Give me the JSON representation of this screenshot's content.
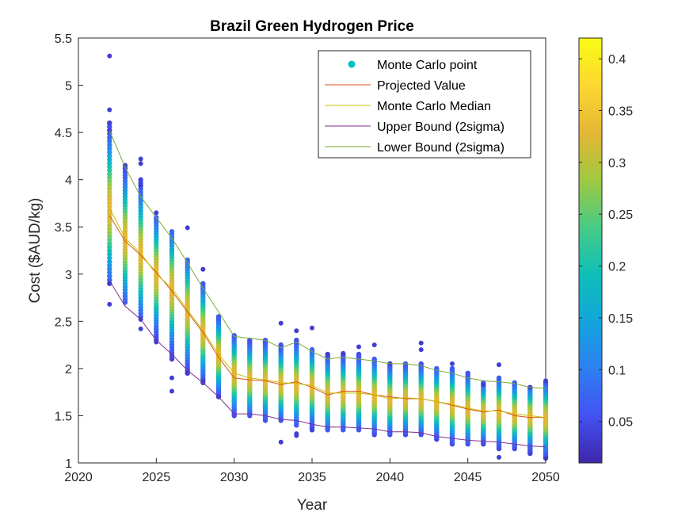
{
  "chart_data": {
    "type": "scatter",
    "title": "Brazil Green Hydrogen Price",
    "xlabel": "Year",
    "ylabel": "Cost ($AUD/kg)",
    "xlim": [
      2020,
      2050
    ],
    "ylim": [
      1,
      5.5
    ],
    "xticks": [
      "2020",
      "2025",
      "2030",
      "2035",
      "2040",
      "2045",
      "2050"
    ],
    "yticks": [
      "1",
      "1.5",
      "2",
      "2.5",
      "3",
      "3.5",
      "4",
      "4.5",
      "5",
      "5.5"
    ],
    "grid": false,
    "legend_position": "top-right",
    "years": [
      2022,
      2023,
      2024,
      2025,
      2026,
      2027,
      2028,
      2029,
      2030,
      2031,
      2032,
      2033,
      2034,
      2035,
      2036,
      2037,
      2038,
      2039,
      2040,
      2041,
      2042,
      2043,
      2044,
      2045,
      2046,
      2047,
      2048,
      2049,
      2050
    ],
    "series": [
      {
        "name": "Monte Carlo point",
        "kind": "points",
        "color": "#00bfc4",
        "ranges": [
          [
            2.9,
            4.6
          ],
          [
            2.7,
            4.15
          ],
          [
            2.55,
            4.0
          ],
          [
            2.3,
            3.6
          ],
          [
            2.1,
            3.45
          ],
          [
            1.95,
            3.15
          ],
          [
            1.85,
            2.9
          ],
          [
            1.7,
            2.55
          ],
          [
            1.5,
            2.35
          ],
          [
            1.5,
            2.3
          ],
          [
            1.45,
            2.3
          ],
          [
            1.45,
            2.25
          ],
          [
            1.4,
            2.3
          ],
          [
            1.35,
            2.2
          ],
          [
            1.35,
            2.15
          ],
          [
            1.35,
            2.15
          ],
          [
            1.35,
            2.15
          ],
          [
            1.3,
            2.1
          ],
          [
            1.3,
            2.05
          ],
          [
            1.3,
            2.05
          ],
          [
            1.3,
            2.05
          ],
          [
            1.25,
            2.0
          ],
          [
            1.2,
            2.0
          ],
          [
            1.2,
            1.95
          ],
          [
            1.2,
            1.85
          ],
          [
            1.15,
            1.9
          ],
          [
            1.15,
            1.85
          ],
          [
            1.1,
            1.8
          ],
          [
            1.05,
            1.85
          ]
        ],
        "outliers": [
          [
            2022,
            5.31
          ],
          [
            2022,
            4.74
          ],
          [
            2022,
            4.6
          ],
          [
            2022,
            4.52
          ],
          [
            2022,
            2.68
          ],
          [
            2022,
            2.9
          ],
          [
            2023,
            4.15
          ],
          [
            2024,
            4.22
          ],
          [
            2024,
            4.17
          ],
          [
            2024,
            3.94
          ],
          [
            2024,
            2.42
          ],
          [
            2024,
            2.52
          ],
          [
            2025,
            3.65
          ],
          [
            2025,
            2.28
          ],
          [
            2026,
            1.76
          ],
          [
            2026,
            1.9
          ],
          [
            2027,
            3.49
          ],
          [
            2027,
            1.95
          ],
          [
            2028,
            3.05
          ],
          [
            2028,
            1.87
          ],
          [
            2029,
            1.7
          ],
          [
            2033,
            2.48
          ],
          [
            2033,
            1.22
          ],
          [
            2034,
            2.4
          ],
          [
            2034,
            1.29
          ],
          [
            2034,
            1.31
          ],
          [
            2035,
            2.43
          ],
          [
            2036,
            2.15
          ],
          [
            2037,
            2.16
          ],
          [
            2038,
            2.23
          ],
          [
            2039,
            2.25
          ],
          [
            2040,
            2.05
          ],
          [
            2042,
            2.27
          ],
          [
            2042,
            2.2
          ],
          [
            2044,
            2.05
          ],
          [
            2046,
            1.83
          ],
          [
            2047,
            2.04
          ],
          [
            2047,
            1.06
          ],
          [
            2049,
            1.8
          ],
          [
            2050,
            1.87
          ],
          [
            2050,
            1.05
          ]
        ]
      },
      {
        "name": "Projected Value",
        "kind": "line",
        "color": "#d95319",
        "values": [
          3.62,
          3.35,
          3.2,
          3.02,
          2.82,
          2.6,
          2.38,
          2.12,
          1.9,
          1.88,
          1.87,
          1.83,
          1.86,
          1.8,
          1.72,
          1.76,
          1.76,
          1.72,
          1.7,
          1.68,
          1.68,
          1.65,
          1.61,
          1.57,
          1.54,
          1.56,
          1.5,
          1.48,
          1.48
        ]
      },
      {
        "name": "Monte Carlo Median",
        "kind": "line",
        "color": "#c4c000",
        "values": [
          3.7,
          3.38,
          3.22,
          3.0,
          2.85,
          2.62,
          2.4,
          2.15,
          1.95,
          1.9,
          1.88,
          1.85,
          1.84,
          1.82,
          1.74,
          1.74,
          1.74,
          1.72,
          1.68,
          1.69,
          1.68,
          1.65,
          1.62,
          1.58,
          1.55,
          1.55,
          1.52,
          1.5,
          1.48
        ]
      },
      {
        "name": "Upper Bound (2sigma)",
        "kind": "line",
        "color": "#7e2f8e",
        "values": [
          2.93,
          2.66,
          2.52,
          2.3,
          2.15,
          1.98,
          1.85,
          1.7,
          1.52,
          1.52,
          1.5,
          1.46,
          1.45,
          1.41,
          1.38,
          1.38,
          1.37,
          1.36,
          1.33,
          1.33,
          1.32,
          1.28,
          1.26,
          1.24,
          1.23,
          1.22,
          1.2,
          1.18,
          1.17
        ]
      },
      {
        "name": "Lower Bound (2sigma)",
        "kind": "line",
        "color": "#77ac30",
        "values": [
          4.52,
          4.13,
          3.82,
          3.6,
          3.38,
          3.12,
          2.85,
          2.6,
          2.34,
          2.32,
          2.3,
          2.22,
          2.28,
          2.18,
          2.1,
          2.12,
          2.1,
          2.08,
          2.05,
          2.05,
          2.03,
          1.98,
          1.95,
          1.9,
          1.87,
          1.86,
          1.84,
          1.8,
          1.79
        ]
      }
    ],
    "colorbar": {
      "ticks": [
        "0.05",
        "0.1",
        "0.15",
        "0.2",
        "0.25",
        "0.3",
        "0.35",
        "0.4"
      ],
      "range": [
        0.01,
        0.42
      ],
      "colormap": [
        "#3e26a8",
        "#4352f3",
        "#2d80f1",
        "#13a5dc",
        "#10bfb8",
        "#48cb86",
        "#a0c93f",
        "#e6b635",
        "#fcd830",
        "#f9fb15"
      ]
    }
  }
}
